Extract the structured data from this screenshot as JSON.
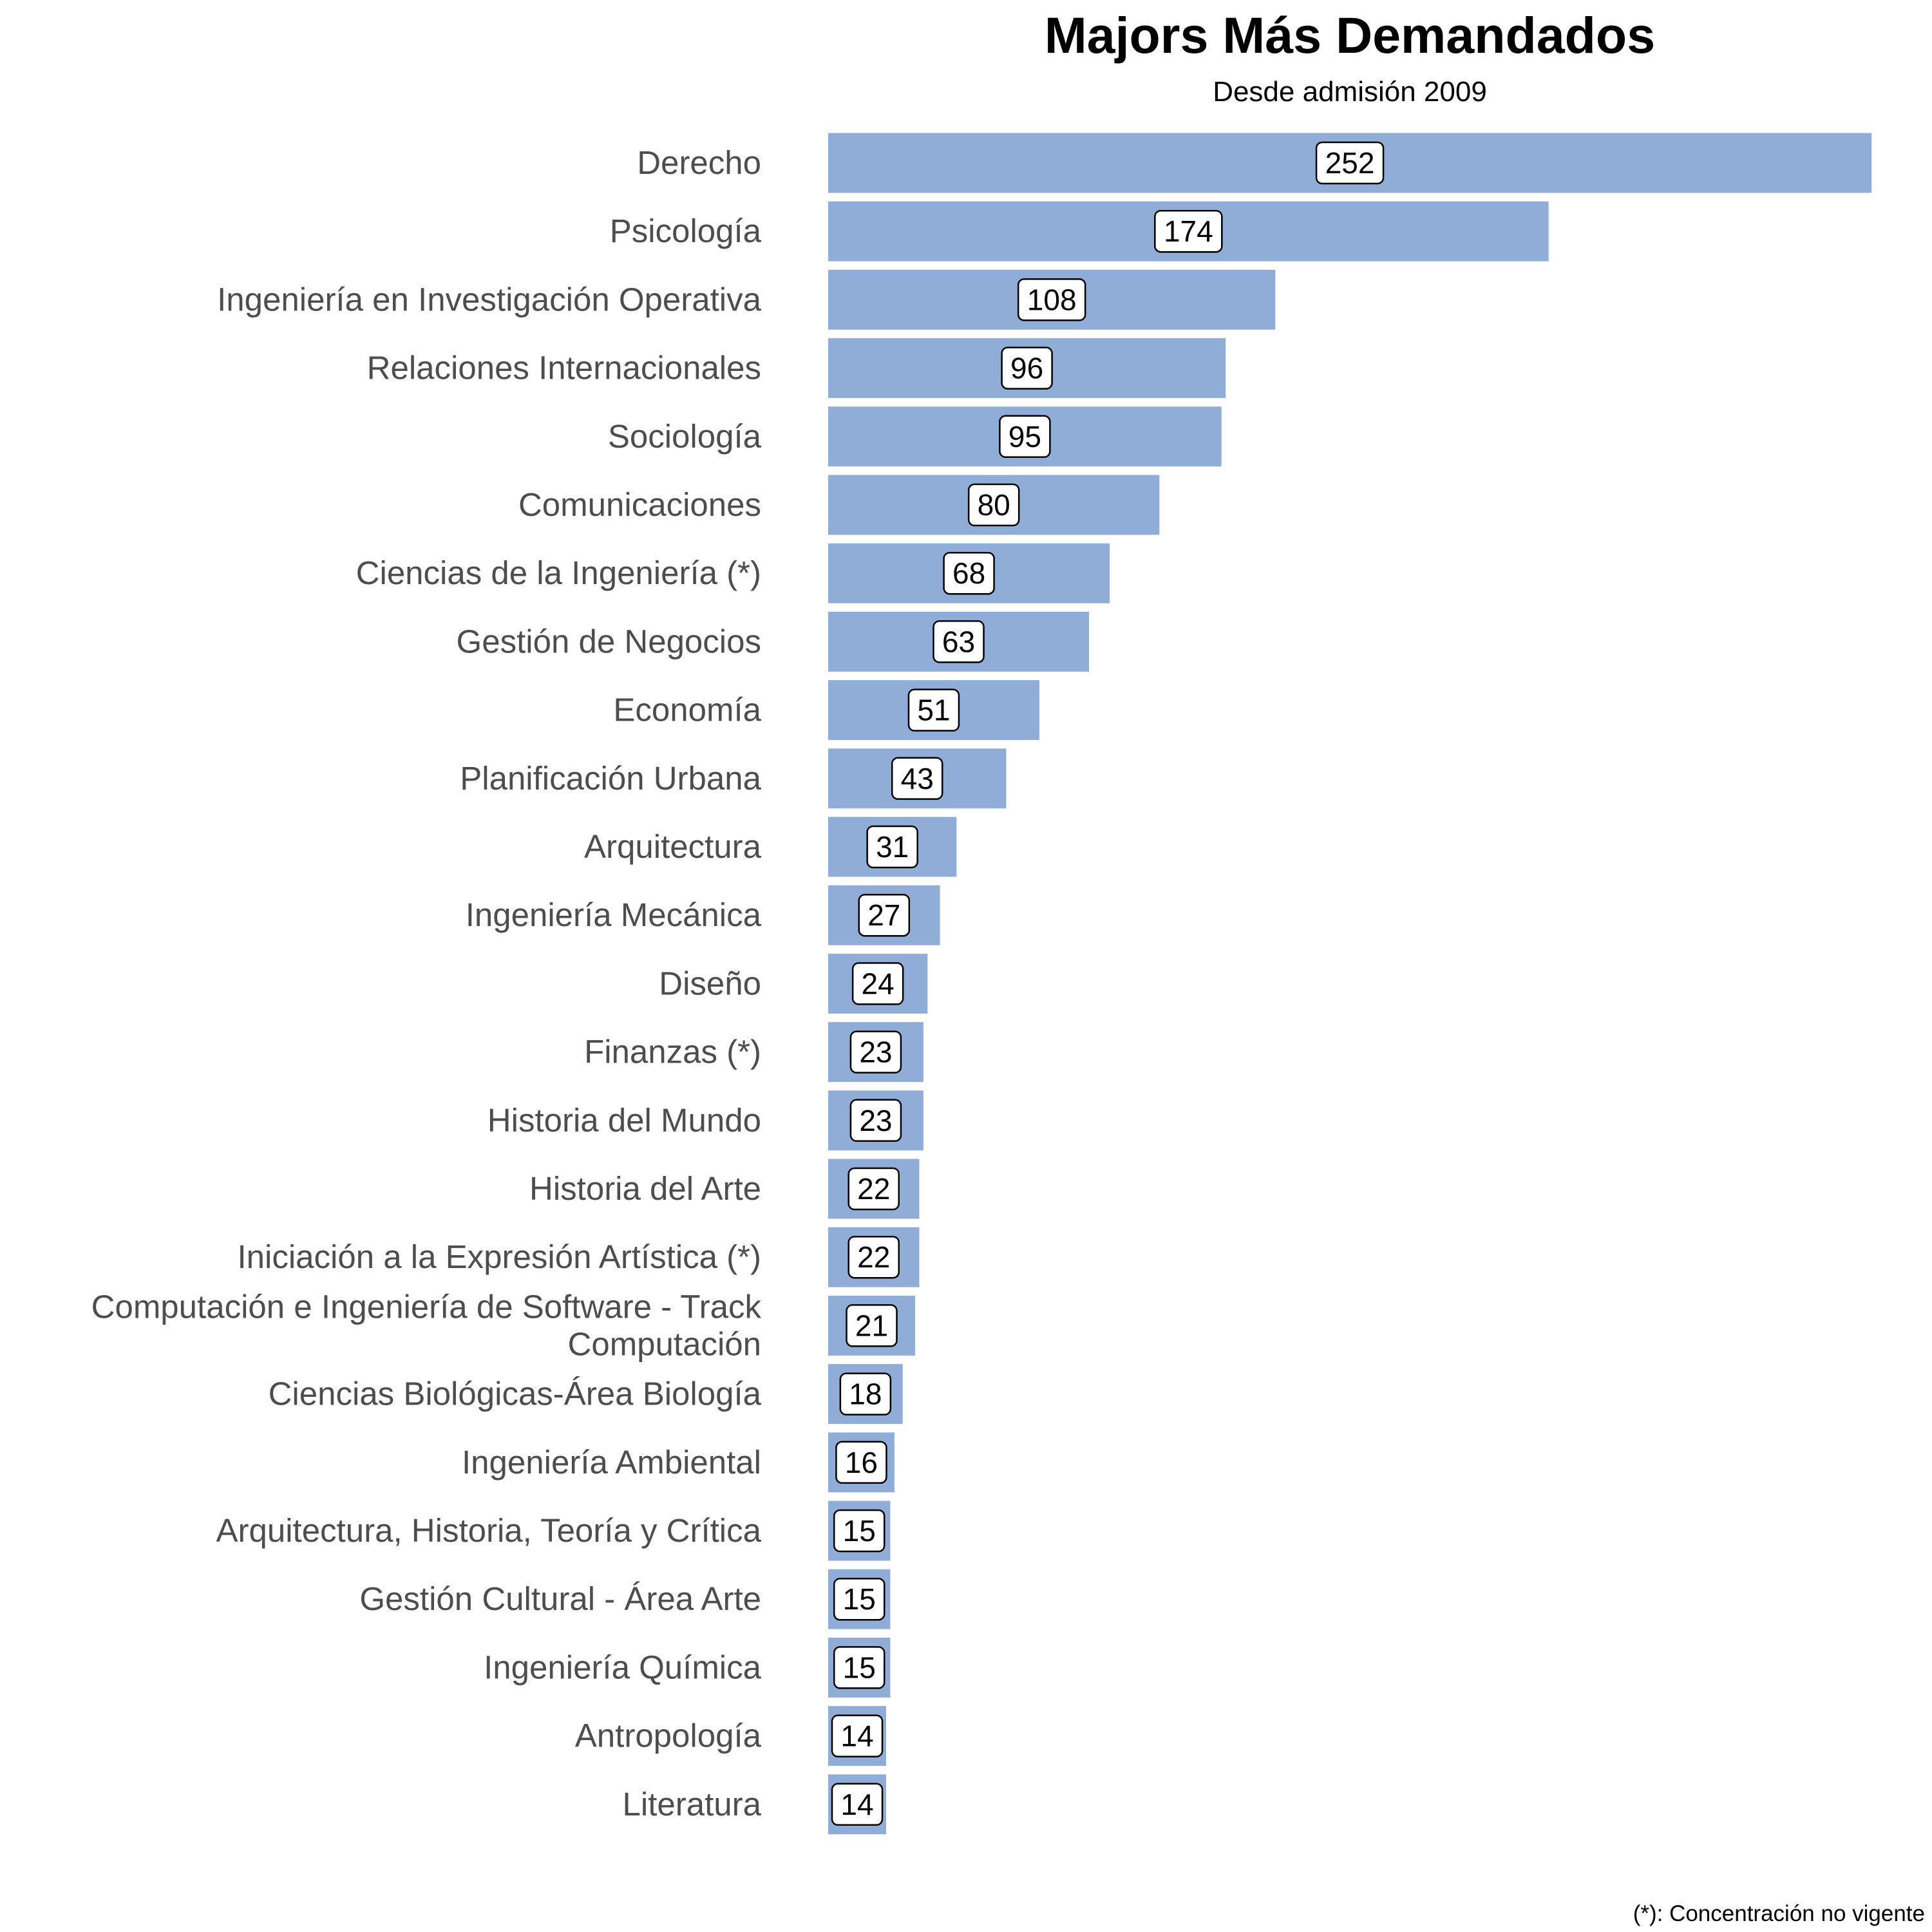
{
  "chart_data": {
    "type": "bar",
    "orientation": "horizontal",
    "title": "Majors Más Demandados",
    "subtitle": "Desde admisión 2009",
    "caption": "(*): Concentración no vigente",
    "xlabel": "",
    "ylabel": "",
    "grid": false,
    "bar_color": "#8fadd6",
    "categories": [
      [
        "Derecho"
      ],
      [
        "Psicología"
      ],
      [
        "Ingeniería en Investigación Operativa"
      ],
      [
        "Relaciones Internacionales"
      ],
      [
        "Sociología"
      ],
      [
        "Comunicaciones"
      ],
      [
        "Ciencias de la Ingeniería (*)"
      ],
      [
        "Gestión de Negocios"
      ],
      [
        "Economía"
      ],
      [
        "Planificación Urbana"
      ],
      [
        "Arquitectura"
      ],
      [
        "Ingeniería Mecánica"
      ],
      [
        "Diseño"
      ],
      [
        "Finanzas (*)"
      ],
      [
        "Historia del Mundo"
      ],
      [
        "Historia del Arte"
      ],
      [
        "Iniciación a la Expresión Artística (*)"
      ],
      [
        "Computación e Ingeniería de Software - Track",
        "Computación"
      ],
      [
        "Ciencias Biológicas-Área Biología"
      ],
      [
        "Ingeniería Ambiental"
      ],
      [
        "Arquitectura, Historia, Teoría y Crítica"
      ],
      [
        "Gestión Cultural - Área Arte"
      ],
      [
        "Ingeniería Química"
      ],
      [
        "Antropología"
      ],
      [
        "Literatura"
      ]
    ],
    "values": [
      252,
      174,
      108,
      96,
      95,
      80,
      68,
      63,
      51,
      43,
      31,
      27,
      24,
      23,
      23,
      22,
      22,
      21,
      18,
      16,
      15,
      15,
      15,
      14,
      14
    ]
  }
}
